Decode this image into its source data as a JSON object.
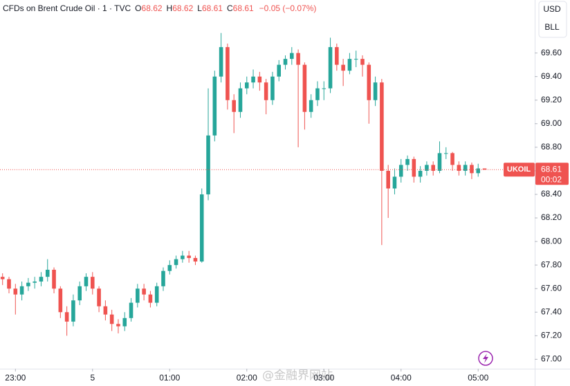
{
  "header": {
    "symbol": "CFDs on Brent Crude Oil · 1 · TVC",
    "ohlc_labels": [
      "O",
      "H",
      "L",
      "C"
    ],
    "open": 68.62,
    "high": 68.62,
    "low": 68.61,
    "close": 68.61,
    "change": "−0.05 (−0.07%)"
  },
  "scale": {
    "currency": "USD",
    "unit": "BLL"
  },
  "price_tag": {
    "symbol": "UKOIL",
    "price": 68.61,
    "countdown": "00:02"
  },
  "watermark": "@金融界网站",
  "chart_data": {
    "type": "candlestick",
    "up_color": "#26a69a",
    "down_color": "#ef5350",
    "x": [
      -10,
      -5,
      0,
      5,
      10,
      15,
      20,
      25,
      30,
      35,
      40,
      45,
      50,
      55,
      60,
      65,
      70,
      75,
      80,
      85,
      90,
      95,
      100,
      105,
      110,
      115,
      120,
      125,
      130,
      135,
      140,
      145,
      150,
      155,
      160,
      165,
      170,
      175,
      180,
      185,
      190,
      195,
      200,
      205,
      210,
      215,
      220,
      225,
      230,
      235,
      240,
      245,
      250,
      255,
      260,
      265,
      270,
      275,
      280,
      285,
      290,
      295,
      300,
      305,
      310,
      315,
      320,
      325,
      330,
      335,
      340,
      345,
      350,
      355,
      360,
      365
    ],
    "open": [
      67.7,
      67.68,
      67.6,
      67.55,
      67.62,
      67.65,
      67.66,
      67.7,
      67.76,
      67.6,
      67.4,
      67.32,
      67.5,
      67.62,
      67.7,
      67.6,
      67.45,
      67.38,
      67.3,
      67.28,
      67.35,
      67.48,
      67.6,
      67.55,
      67.48,
      67.62,
      67.75,
      67.8,
      67.85,
      67.88,
      67.86,
      67.83,
      68.4,
      68.9,
      69.4,
      69.65,
      69.2,
      69.1,
      69.3,
      69.35,
      69.4,
      69.35,
      69.2,
      69.4,
      69.5,
      69.55,
      69.6,
      69.5,
      69.1,
      69.2,
      69.3,
      69.3,
      69.65,
      69.5,
      69.45,
      69.55,
      69.55,
      69.5,
      69.2,
      69.35,
      68.6,
      68.45,
      68.55,
      68.65,
      68.7,
      68.55,
      68.6,
      68.65,
      68.6,
      68.75,
      68.75,
      68.65,
      68.6,
      68.65,
      68.58,
      68.62
    ],
    "high": [
      67.73,
      67.7,
      67.64,
      67.66,
      67.69,
      67.7,
      67.74,
      67.85,
      67.78,
      67.62,
      67.45,
      67.55,
      67.66,
      67.73,
      67.74,
      67.62,
      67.5,
      67.42,
      67.34,
      67.4,
      67.52,
      67.64,
      67.64,
      67.58,
      67.65,
      67.78,
      67.84,
      67.88,
      67.92,
      67.92,
      67.88,
      68.45,
      69.3,
      69.45,
      69.77,
      69.68,
      69.25,
      69.35,
      69.4,
      69.46,
      69.44,
      69.38,
      69.44,
      69.54,
      69.58,
      69.65,
      69.63,
      69.52,
      69.25,
      69.36,
      69.36,
      69.73,
      69.68,
      69.55,
      69.6,
      69.62,
      69.58,
      69.52,
      69.4,
      69.38,
      68.65,
      68.62,
      68.7,
      68.73,
      68.72,
      68.64,
      68.68,
      68.68,
      68.85,
      68.8,
      68.76,
      68.68,
      68.68,
      68.67,
      68.66,
      68.62
    ],
    "low": [
      67.63,
      67.56,
      67.38,
      67.5,
      67.58,
      67.6,
      67.62,
      67.66,
      67.56,
      67.35,
      67.2,
      67.28,
      67.46,
      67.58,
      67.55,
      67.4,
      67.33,
      67.24,
      67.22,
      67.24,
      67.32,
      67.44,
      67.5,
      67.44,
      67.45,
      67.58,
      67.72,
      67.77,
      67.82,
      67.82,
      67.8,
      67.82,
      68.35,
      68.85,
      69.35,
      69.12,
      68.92,
      69.05,
      69.25,
      69.3,
      69.28,
      69.08,
      69.16,
      69.36,
      69.46,
      69.5,
      68.8,
      68.95,
      69.05,
      69.15,
      69.2,
      69.26,
      69.45,
      69.32,
      69.42,
      69.48,
      69.4,
      69.0,
      69.15,
      67.97,
      68.2,
      68.4,
      68.5,
      68.6,
      68.5,
      68.5,
      68.56,
      68.56,
      68.58,
      68.7,
      68.6,
      68.56,
      68.56,
      68.53,
      68.55,
      68.61
    ],
    "close": [
      67.68,
      67.6,
      67.55,
      67.62,
      67.65,
      67.66,
      67.7,
      67.76,
      67.6,
      67.4,
      67.32,
      67.5,
      67.62,
      67.7,
      67.6,
      67.45,
      67.38,
      67.3,
      67.28,
      67.35,
      67.48,
      67.6,
      67.55,
      67.48,
      67.62,
      67.75,
      67.8,
      67.85,
      67.88,
      67.86,
      67.83,
      68.4,
      68.9,
      69.4,
      69.65,
      69.2,
      69.1,
      69.3,
      69.35,
      69.4,
      69.35,
      69.2,
      69.4,
      69.5,
      69.55,
      69.6,
      69.5,
      69.1,
      69.2,
      69.3,
      69.3,
      69.65,
      69.5,
      69.45,
      69.55,
      69.55,
      69.5,
      69.2,
      69.35,
      68.6,
      68.45,
      68.55,
      68.65,
      68.7,
      68.55,
      68.6,
      68.65,
      68.6,
      68.75,
      68.75,
      68.65,
      68.6,
      68.65,
      68.58,
      68.62,
      68.61
    ],
    "xlim": [
      -12,
      404
    ],
    "xticks": [
      {
        "value": 0,
        "label": "23:00"
      },
      {
        "value": 60,
        "label": "5"
      },
      {
        "value": 120,
        "label": "01:00"
      },
      {
        "value": 180,
        "label": "02:00"
      },
      {
        "value": 240,
        "label": "03:00"
      },
      {
        "value": 300,
        "label": "04:00"
      },
      {
        "value": 360,
        "label": "05:00"
      }
    ],
    "ylim": [
      66.92,
      70.05
    ],
    "yticks": [
      {
        "value": 67,
        "label": "67.00"
      },
      {
        "value": 67.2,
        "label": "67.20"
      },
      {
        "value": 67.4,
        "label": "67.40"
      },
      {
        "value": 67.6,
        "label": "67.60"
      },
      {
        "value": 67.8,
        "label": "67.80"
      },
      {
        "value": 68,
        "label": "68.00"
      },
      {
        "value": 68.2,
        "label": "68.20"
      },
      {
        "value": 68.4,
        "label": "68.40"
      },
      {
        "value": 68.6,
        "label": "68.60"
      },
      {
        "value": 68.8,
        "label": "68.80"
      },
      {
        "value": 69,
        "label": "69.00"
      },
      {
        "value": 69.2,
        "label": "69.20"
      },
      {
        "value": 69.4,
        "label": "69.40"
      },
      {
        "value": 69.6,
        "label": "69.60"
      }
    ],
    "grid": false
  }
}
